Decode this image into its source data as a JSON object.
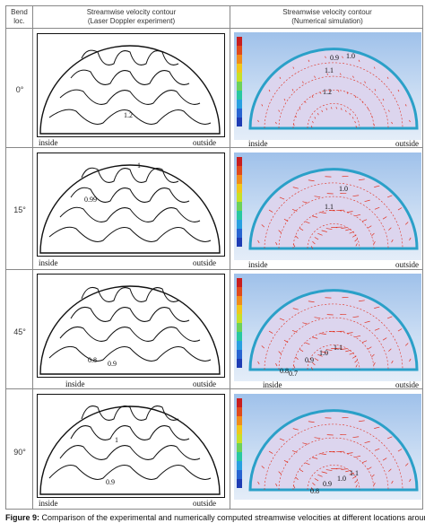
{
  "header": {
    "loc_title": "Bend\nloc.",
    "exp_title": "Streamwise velocity contour",
    "exp_subtitle": "(Laser Doppler experiment)",
    "sim_title": "Streamwise velocity contour",
    "sim_subtitle": "(Numerical simulation)"
  },
  "rows": [
    {
      "loc": "0°",
      "exp_labels": [
        "1.2"
      ],
      "sim_labels": [
        "0.9",
        "1.0",
        "1.1",
        "1.2"
      ]
    },
    {
      "loc": "15°",
      "exp_labels": [
        "0.99",
        "1"
      ],
      "sim_labels": [
        "1.0",
        "1.1"
      ]
    },
    {
      "loc": "45°",
      "exp_labels": [
        "0.8",
        "0.9"
      ],
      "sim_labels": [
        "0.7",
        "0.8",
        "0.9",
        "1.0",
        "1.1"
      ]
    },
    {
      "loc": "90°",
      "exp_labels": [
        "0.9",
        "1"
      ],
      "sim_labels": [
        "0.8",
        "0.9",
        "1.0",
        "1.1"
      ]
    }
  ],
  "side_labels": {
    "inside": "inside",
    "outside": "outside"
  },
  "caption": {
    "label": "Figure 9:",
    "text": " Comparison of the experimental and numerically computed streamwise velocities at different locations around"
  },
  "colors": {
    "border": "#888888",
    "vector": "#e03020",
    "contour": "#111111"
  }
}
